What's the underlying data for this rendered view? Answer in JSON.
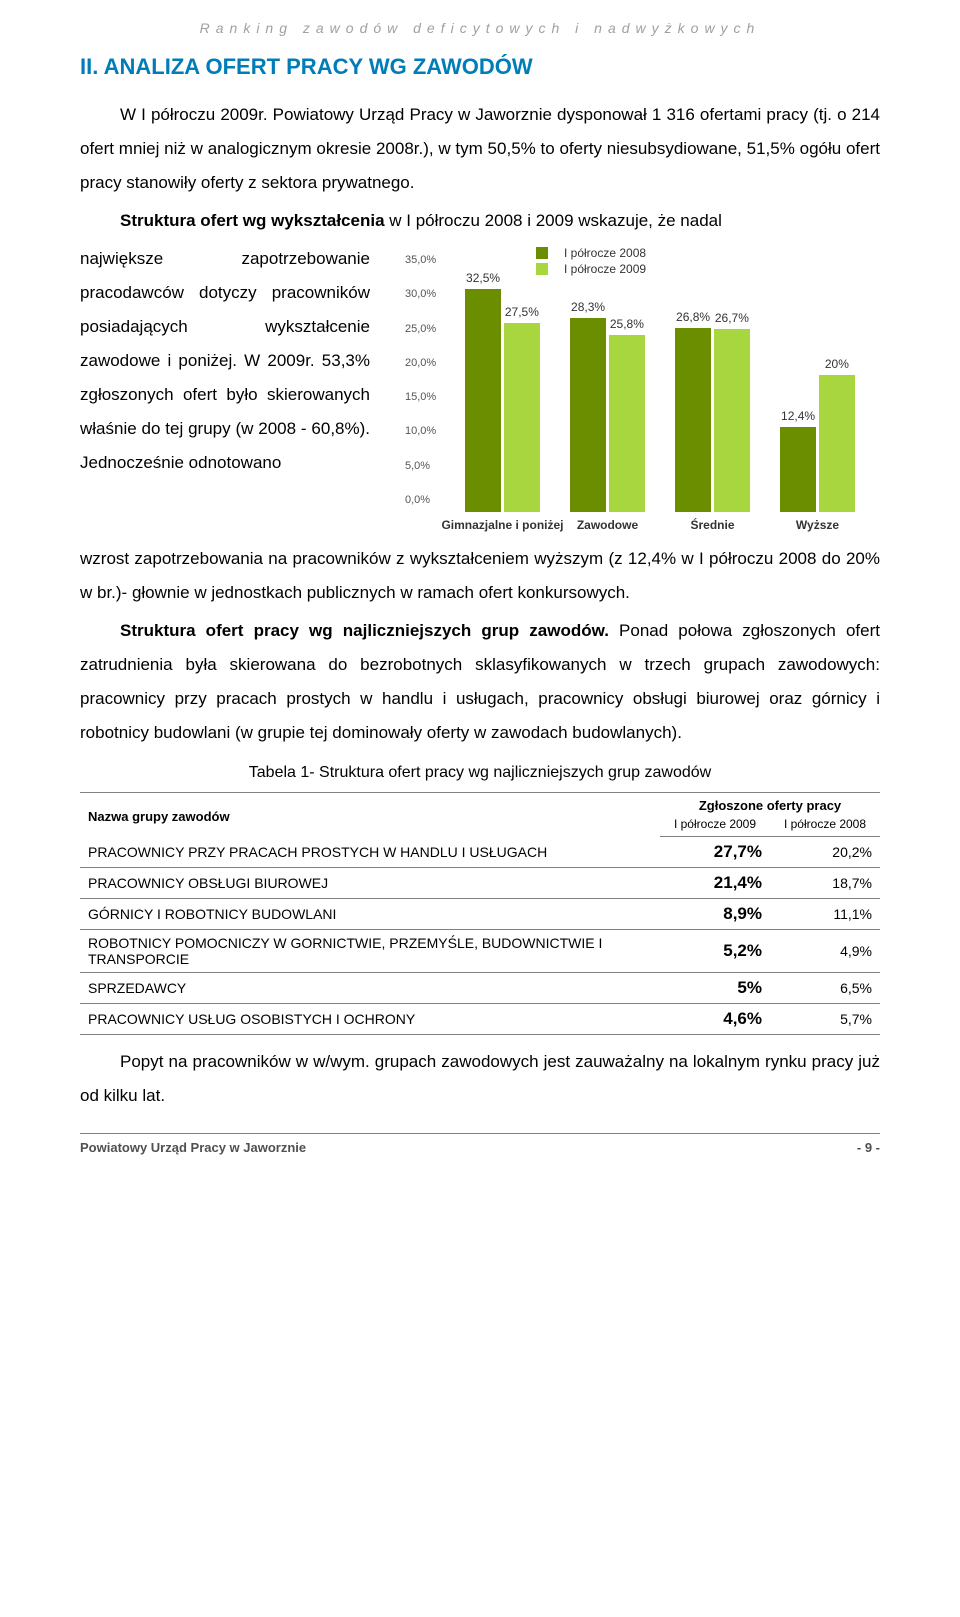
{
  "running_header": "Ranking zawodów deficytowych i nadwyżkowych",
  "h2": "II. ANALIZA OFERT PRACY WG ZAWODÓW",
  "p1": "W I półroczu 2009r. Powiatowy Urząd Pracy w Jaworznie dysponował 1 316 ofertami pracy (tj. o 214 ofert mniej niż w analogicznym okresie 2008r.), w tym 50,5% to oferty niesubsydiowane, 51,5% ogółu ofert pracy stanowiły oferty z sektora prywatnego.",
  "p2_lead": "Struktura ofert wg wykształcenia",
  "p2_rest": " w I półroczu 2008 i 2009 wskazuje, że nadal",
  "left_text": "największe zapotrzebowanie pracodawców dotyczy pracowników posiadających wykształcenie zawodowe i poniżej. W 2009r. 53,3% zgłoszonych ofert było skierowanych właśnie do tej grupy (w 2008 - 60,8%). Jednocześnie odnotowano",
  "p3_after": "wzrost zapotrzebowania na pracowników z wykształceniem wyższym (z 12,4% w I półroczu 2008 do 20% w br.)- głownie w jednostkach publicznych w ramach ofert konkursowych.",
  "p4_lead": "Struktura ofert pracy wg najliczniejszych grup zawodów.",
  "p4_rest": " Ponad połowa zgłoszonych ofert zatrudnienia była skierowana do bezrobotnych sklasyfikowanych w trzech grupach zawodowych: pracownicy przy pracach prostych w handlu i usługach, pracownicy obsługi biurowej oraz górnicy i robotnicy budowlani (w grupie tej dominowały oferty w zawodach budowlanych).",
  "table_caption": "Tabela 1- Struktura ofert pracy wg najliczniejszych grup zawodów",
  "p5_lead": "Popyt na pracowników w w/wym. grupach zawodowych jest zauważalny na lokalnym rynku pracy już od kilku lat.",
  "chart": {
    "type": "bar",
    "legend_labels": [
      "I półrocze 2008",
      "I półrocze 2009"
    ],
    "series_colors": [
      "#6b8e00",
      "#a8d63f"
    ],
    "categories": [
      "Gimnazjalne i poniżej",
      "Zawodowe",
      "Średnie",
      "Wyższe"
    ],
    "values_2008": [
      32.5,
      28.3,
      26.8,
      12.4
    ],
    "values_2009": [
      27.5,
      25.8,
      26.7,
      20.0
    ],
    "labels_2008": [
      "32,5%",
      "28,3%",
      "26,8%",
      "12,4%"
    ],
    "labels_2009": [
      "27,5%",
      "25,8%",
      "26,7%",
      "20%"
    ],
    "ymax": 35,
    "ytick_step": 5,
    "yticks": [
      "0,0%",
      "5,0%",
      "10,0%",
      "15,0%",
      "20,0%",
      "25,0%",
      "30,0%",
      "35,0%"
    ],
    "background_color": "#ffffff",
    "label_fontsize": 12
  },
  "table": {
    "header_group_label": "Nazwa grupy zawodów",
    "header_col_group": "Zgłoszone oferty pracy",
    "header_cols": [
      "I półrocze 2009",
      "I półrocze 2008"
    ],
    "rows": [
      {
        "name": "PRACOWNICY PRZY PRACACH PROSTYCH W HANDLU I USŁUGACH",
        "v09": "27,7%",
        "v08": "20,2%"
      },
      {
        "name": "PRACOWNICY OBSŁUGI BIUROWEJ",
        "v09": "21,4%",
        "v08": "18,7%"
      },
      {
        "name": "GÓRNICY I ROBOTNICY BUDOWLANI",
        "v09": "8,9%",
        "v08": "11,1%"
      },
      {
        "name": "ROBOTNICY POMOCNICZY W GORNICTWIE, PRZEMYŚLE, BUDOWNICTWIE I TRANSPORCIE",
        "v09": "5,2%",
        "v08": "4,9%"
      },
      {
        "name": "SPRZEDAWCY",
        "v09": "5%",
        "v08": "6,5%"
      },
      {
        "name": "PRACOWNICY USŁUG OSOBISTYCH I OCHRONY",
        "v09": "4,6%",
        "v08": "5,7%"
      }
    ]
  },
  "footer_left": "Powiatowy Urząd Pracy w Jaworznie",
  "footer_right": "- 9 -"
}
